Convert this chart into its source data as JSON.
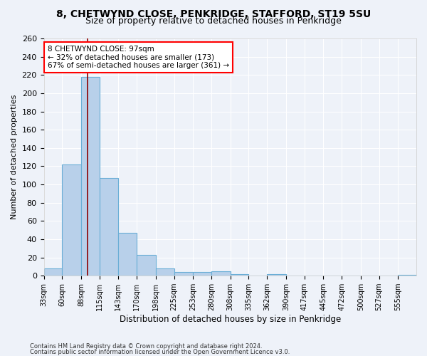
{
  "title1": "8, CHETWYND CLOSE, PENKRIDGE, STAFFORD, ST19 5SU",
  "title2": "Size of property relative to detached houses in Penkridge",
  "xlabel": "Distribution of detached houses by size in Penkridge",
  "ylabel": "Number of detached properties",
  "footnote1": "Contains HM Land Registry data © Crown copyright and database right 2024.",
  "footnote2": "Contains public sector information licensed under the Open Government Licence v3.0.",
  "annotation_line1": "8 CHETWYND CLOSE: 97sqm",
  "annotation_line2": "← 32% of detached houses are smaller (173)",
  "annotation_line3": "67% of semi-detached houses are larger (361) →",
  "bar_edges": [
    33,
    60,
    88,
    115,
    143,
    170,
    198,
    225,
    253,
    280,
    308,
    335,
    362,
    390,
    417,
    445,
    472,
    500,
    527,
    555,
    582
  ],
  "bar_values": [
    8,
    122,
    218,
    107,
    47,
    23,
    8,
    4,
    4,
    5,
    2,
    0,
    2,
    0,
    0,
    0,
    0,
    0,
    0,
    1
  ],
  "bar_color": "#b8d0ea",
  "bar_edge_color": "#6aaed6",
  "reference_line_x": 97,
  "reference_line_color": "#8b0000",
  "ylim": [
    0,
    260
  ],
  "yticks": [
    0,
    20,
    40,
    60,
    80,
    100,
    120,
    140,
    160,
    180,
    200,
    220,
    240,
    260
  ],
  "bg_color": "#eef2f9",
  "grid_color": "#ffffff",
  "title1_fontsize": 10,
  "title2_fontsize": 9,
  "axis_label_fontsize": 8.5,
  "ylabel_fontsize": 8,
  "tick_fontsize": 7,
  "footnote_fontsize": 6
}
